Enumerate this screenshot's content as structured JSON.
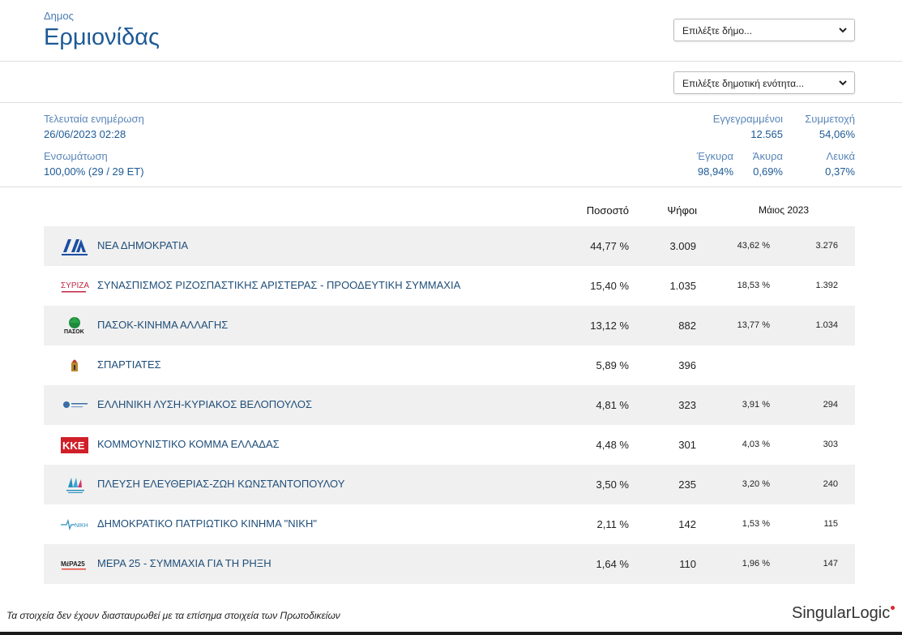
{
  "header": {
    "subtitle": "Δημος",
    "title": "Ερμιονίδας"
  },
  "selects": {
    "municipality": "Επιλέξτε δήμο...",
    "unit": "Επιλέξτε δημοτική ενότητα..."
  },
  "stats": {
    "last_update_label": "Τελευταία ενημέρωση",
    "last_update_value": "26/06/2023 02:28",
    "integration_label": "Ενσωμάτωση",
    "integration_value": "100,00% (29 / 29 ΕΤ)",
    "registered_label": "Εγγεγραμμένοι",
    "registered_value": "12.565",
    "turnout_label": "Συμμετοχή",
    "turnout_value": "54,06%",
    "valid_label": "Έγκυρα",
    "valid_value": "98,94%",
    "invalid_label": "Άκυρα",
    "invalid_value": "0,69%",
    "blank_label": "Λευκά",
    "blank_value": "0,37%"
  },
  "table": {
    "col_pct": "Ποσοστό",
    "col_votes": "Ψήφοι",
    "col_prev": "Μάιος 2023",
    "rows": [
      {
        "name": "ΝΕΑ ΔΗΜΟΚΡΑΤΙΑ",
        "pct": "44,77 %",
        "votes": "3.009",
        "prev_pct": "43,62 %",
        "prev_votes": "3.276",
        "logo": "nd-logo-icon"
      },
      {
        "name": "ΣΥΝΑΣΠΙΣΜΟΣ ΡΙΖΟΣΠΑΣΤΙΚΗΣ ΑΡΙΣΤΕΡΑΣ - ΠΡΟΟΔΕΥΤΙΚΗ ΣΥΜΜΑΧΙΑ",
        "pct": "15,40 %",
        "votes": "1.035",
        "prev_pct": "18,53 %",
        "prev_votes": "1.392",
        "logo": "syriza-logo-icon",
        "logo_text": "ΣΥΡΙΖΑ"
      },
      {
        "name": "ΠΑΣΟΚ-ΚΙΝΗΜΑ ΑΛΛΑΓΗΣ",
        "pct": "13,12 %",
        "votes": "882",
        "prev_pct": "13,77 %",
        "prev_votes": "1.034",
        "logo": "pasok-logo-icon",
        "logo_text": "ΠΑΣΟΚ"
      },
      {
        "name": "ΣΠΑΡΤΙΑΤΕΣ",
        "pct": "5,89 %",
        "votes": "396",
        "prev_pct": "",
        "prev_votes": "",
        "logo": "spartiates-logo-icon"
      },
      {
        "name": "ΕΛΛΗΝΙΚΗ ΛΥΣΗ-ΚΥΡΙΑΚΟΣ ΒΕΛΟΠΟΥΛΟΣ",
        "pct": "4,81 %",
        "votes": "323",
        "prev_pct": "3,91 %",
        "prev_votes": "294",
        "logo": "elliniki-lysi-logo-icon"
      },
      {
        "name": "ΚΟΜΜΟΥΝΙΣΤΙΚΟ ΚΟΜΜΑ ΕΛΛΑΔΑΣ",
        "pct": "4,48 %",
        "votes": "301",
        "prev_pct": "4,03 %",
        "prev_votes": "303",
        "logo": "kke-logo-icon",
        "logo_text": "ΚΚΕ"
      },
      {
        "name": "ΠΛΕΥΣΗ ΕΛΕΥΘΕΡΙΑΣ-ΖΩΗ ΚΩΝΣΤΑΝΤΟΠΟΥΛΟΥ",
        "pct": "3,50 %",
        "votes": "235",
        "prev_pct": "3,20 %",
        "prev_votes": "240",
        "logo": "plefsi-logo-icon"
      },
      {
        "name": "ΔΗΜΟΚΡΑΤΙΚΟ ΠΑΤΡΙΩΤΙΚΟ ΚΙΝΗΜΑ \"ΝΙΚΗ\"",
        "pct": "2,11 %",
        "votes": "142",
        "prev_pct": "1,53 %",
        "prev_votes": "115",
        "logo": "niki-logo-icon",
        "logo_text": "ΝΙΚΗ"
      },
      {
        "name": "ΜΕΡΑ 25 - ΣΥΜΜΑΧΙΑ ΓΙΑ ΤΗ ΡΗΞΗ",
        "pct": "1,64 %",
        "votes": "110",
        "prev_pct": "1,96 %",
        "prev_votes": "147",
        "logo": "mera25-logo-icon",
        "logo_text": "ΜέΡΑ25"
      }
    ]
  },
  "footer": {
    "note": "Τα στοιχεία δεν έχουν διασταυρωθεί με τα επίσημα στοιχεία των Πρωτοδικείων",
    "brand_a": "Singular",
    "brand_b": "Logic"
  }
}
